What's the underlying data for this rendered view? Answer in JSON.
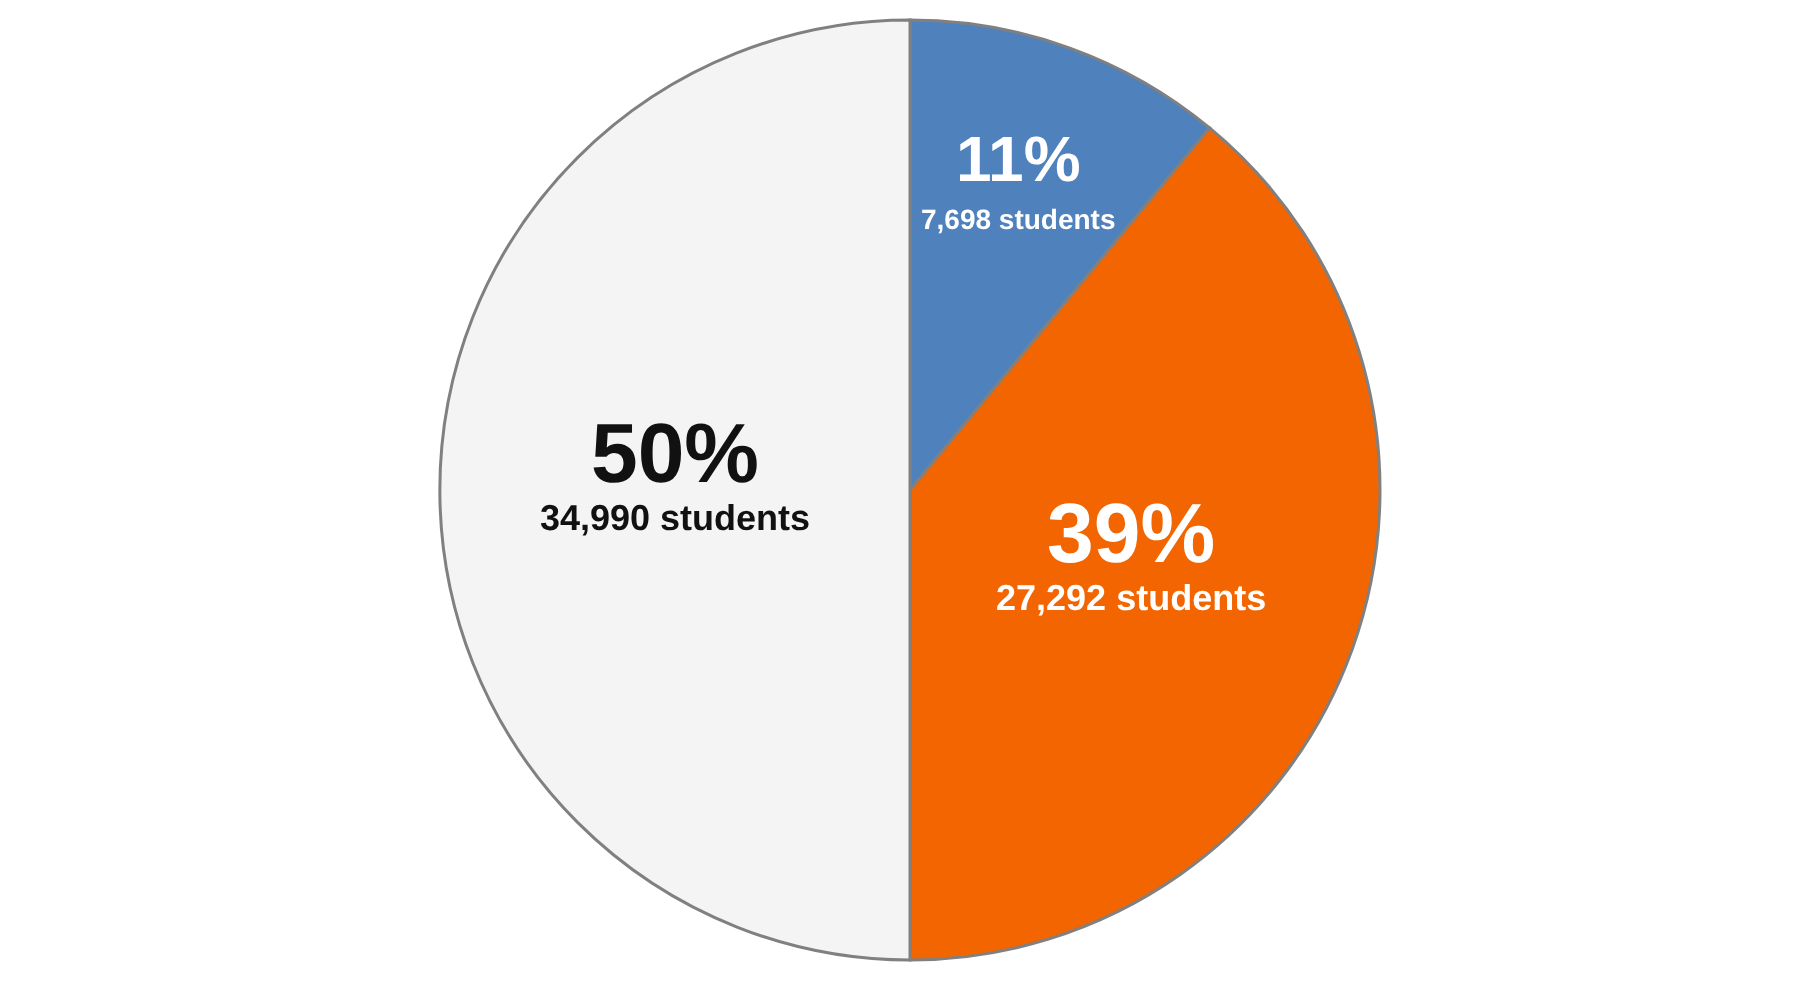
{
  "chart_data": {
    "type": "pie",
    "categories": [
      null,
      null,
      null
    ],
    "values": [
      7698,
      27292,
      34990
    ],
    "colors": [
      "#4f81bd",
      "#f26500",
      "#f4f4f4"
    ],
    "value_labels": [
      "11%\n7,698 students",
      "39%\n27,292 students",
      "50%\n34,990 students"
    ]
  }
}
